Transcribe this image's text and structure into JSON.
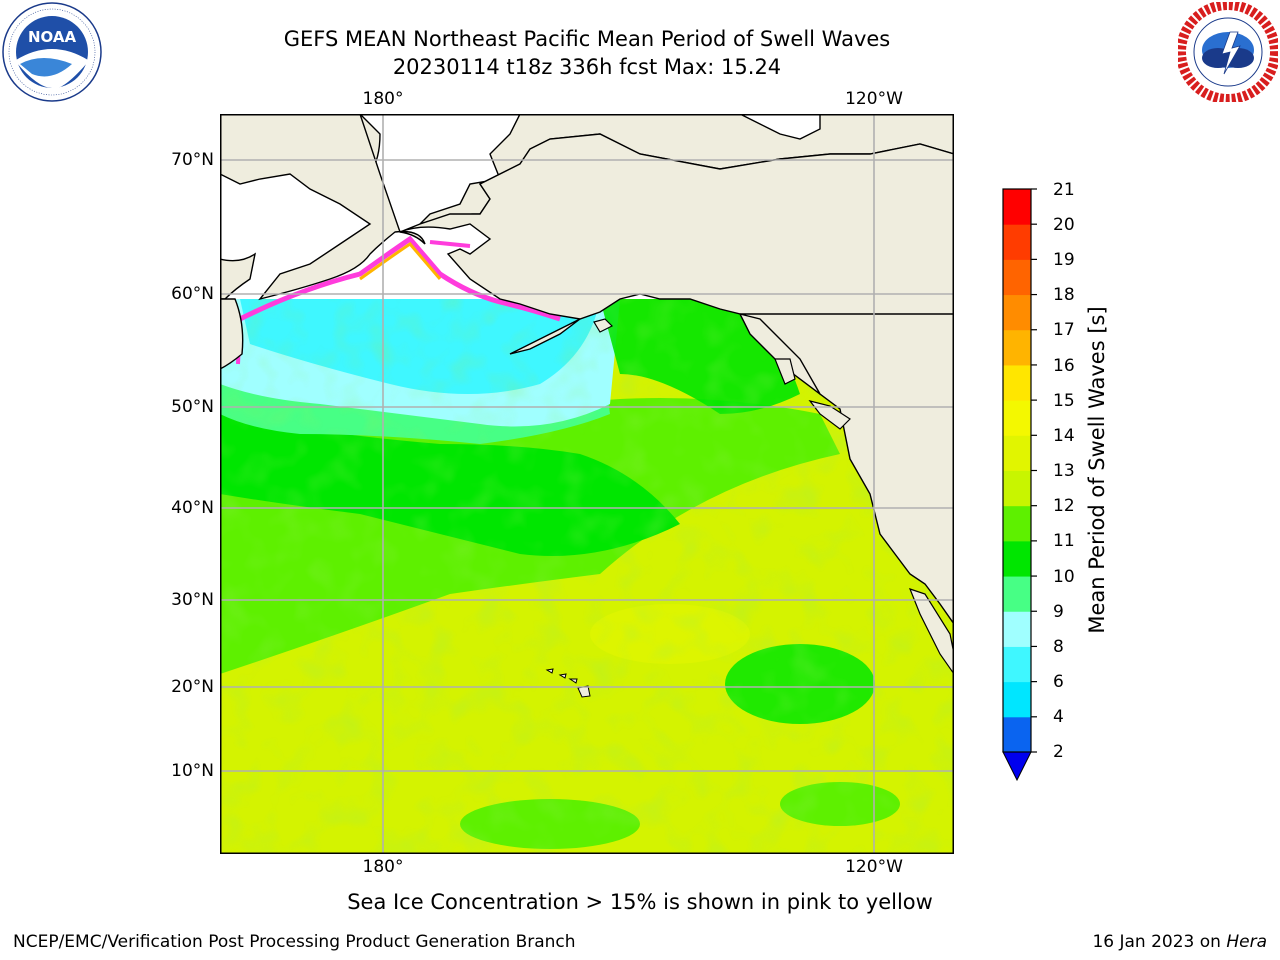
{
  "title": {
    "line1": "GEFS MEAN Northeast Pacific Mean Period of Swell Waves",
    "line2": "20230114 t18z 336h fcst   Max: 15.24"
  },
  "logos": {
    "left": {
      "icon": "noaa-logo",
      "text": "NOAA",
      "ring_text": "NATIONAL OCEANIC AND ATMOSPHERIC ADMINISTRATION · U.S. DEPARTMENT OF COMMERCE"
    },
    "right": {
      "icon": "nws-logo",
      "ring_text": "NATIONAL WEATHER SERVICE"
    }
  },
  "map": {
    "lon_labels_top": [
      "180°",
      "120°W"
    ],
    "lon_labels_bottom": [
      "180°",
      "120°W"
    ],
    "lat_labels": [
      "70°N",
      "60°N",
      "50°N",
      "40°N",
      "30°N",
      "20°N",
      "10°N"
    ],
    "land_color": "#efedde",
    "grid_color": "#b0b0b0"
  },
  "colorbar": {
    "label": "Mean Period of Swell Waves [s]",
    "ticks": [
      "21",
      "20",
      "19",
      "18",
      "17",
      "16",
      "15",
      "14",
      "13",
      "12",
      "11",
      "10",
      "9",
      "8",
      "6",
      "4",
      "2"
    ],
    "colors_low_to_high": [
      "#0a64f0",
      "#00e6ff",
      "#3ff7ff",
      "#a0ffff",
      "#47ff85",
      "#00e600",
      "#5ef000",
      "#c8f500",
      "#e1f500",
      "#f4f800",
      "#ffe600",
      "#ffb400",
      "#ff8c00",
      "#ff6400",
      "#ff3c00",
      "#ff0000"
    ],
    "under_color": "#0000ee"
  },
  "ice_note": "Sea Ice Concentration > 15% is shown in pink to yellow",
  "footer": {
    "left": "NCEP/EMC/Verification Post Processing Product Generation Branch",
    "right_date": "16 Jan 2023 on ",
    "right_machine": "Hera"
  }
}
